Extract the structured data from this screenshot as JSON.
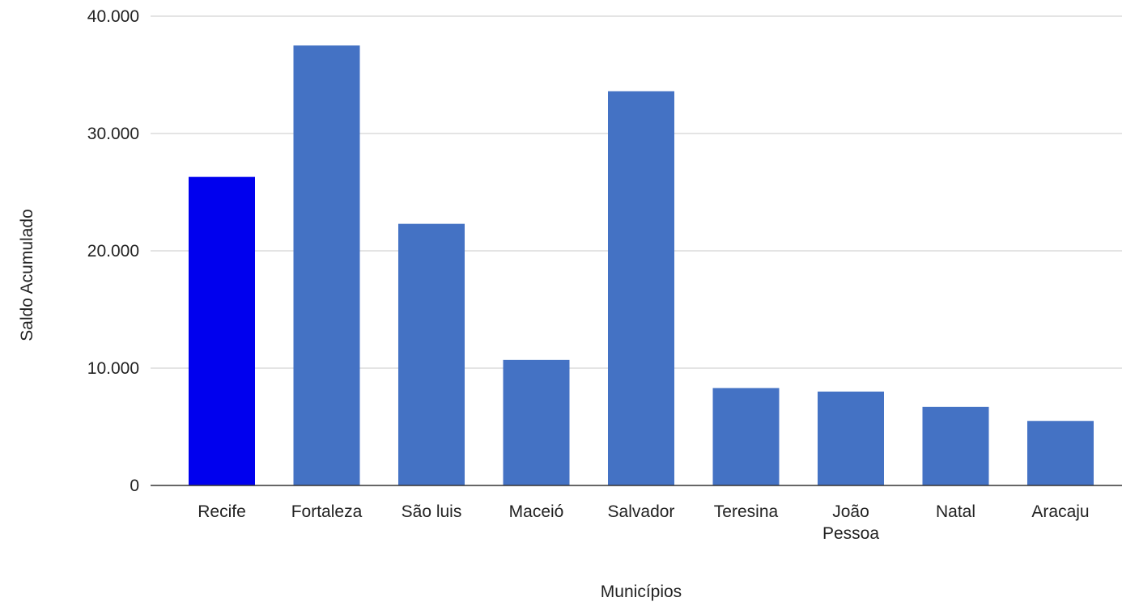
{
  "chart_data": {
    "type": "bar",
    "title": "",
    "xlabel": "Municípios",
    "ylabel": "Saldo Acumulado",
    "categories": [
      "Recife",
      "Fortaleza",
      "São luis",
      "Maceió",
      "Salvador",
      "Teresina",
      "João Pessoa",
      "Natal",
      "Aracaju"
    ],
    "category_label_lines": [
      [
        "Recife"
      ],
      [
        "Fortaleza"
      ],
      [
        "São luis"
      ],
      [
        "Maceió"
      ],
      [
        "Salvador"
      ],
      [
        "Teresina"
      ],
      [
        "João",
        "Pessoa"
      ],
      [
        "Natal"
      ],
      [
        "Aracaju"
      ]
    ],
    "values": [
      26300,
      37500,
      22300,
      10700,
      33600,
      8300,
      8000,
      6700,
      5500
    ],
    "bar_colors": [
      "#0000ee",
      "#4472c4",
      "#4472c4",
      "#4472c4",
      "#4472c4",
      "#4472c4",
      "#4472c4",
      "#4472c4",
      "#4472c4"
    ],
    "ylim": [
      0,
      40000
    ],
    "yticks": [
      0,
      10000,
      20000,
      30000,
      40000
    ],
    "ytick_labels": [
      "0",
      "10.000",
      "20.000",
      "30.000",
      "40.000"
    ],
    "grid": true,
    "legend": "none"
  }
}
